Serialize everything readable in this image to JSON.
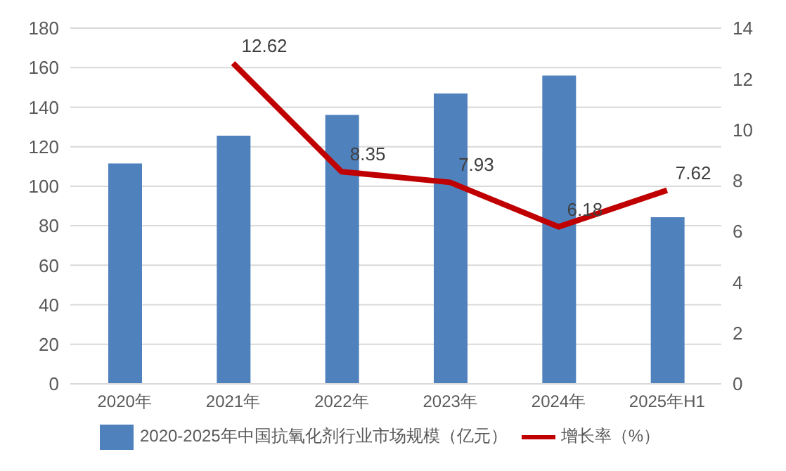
{
  "chart_data": {
    "type": "bar",
    "categories": [
      "2020年",
      "2021年",
      "2022年",
      "2023年",
      "2024年",
      "2025年H1"
    ],
    "series": [
      {
        "name": "2020-2025年中国抗氧化剂行业市场规模（亿元）",
        "color": "#4f81bd",
        "values": [
          111.5,
          125.6,
          136.1,
          146.9,
          156.0,
          84.3
        ]
      },
      {
        "name": "增长率（%）",
        "type": "line",
        "axis": "y2",
        "color": "#c00000",
        "marker": "none",
        "values": [
          null,
          12.62,
          8.35,
          7.93,
          6.18,
          7.62
        ],
        "value_labels": [
          null,
          "12.62",
          "8.35",
          "7.93",
          "6.18",
          "7.62"
        ]
      }
    ],
    "ylim": [
      0,
      180
    ],
    "yticks": [
      0,
      20,
      40,
      60,
      80,
      100,
      120,
      140,
      160,
      180
    ],
    "y2lim": [
      0,
      14
    ],
    "y2ticks": [
      0,
      2,
      4,
      6,
      8,
      10,
      12,
      14
    ],
    "grid": "y",
    "legend": "bottom"
  }
}
